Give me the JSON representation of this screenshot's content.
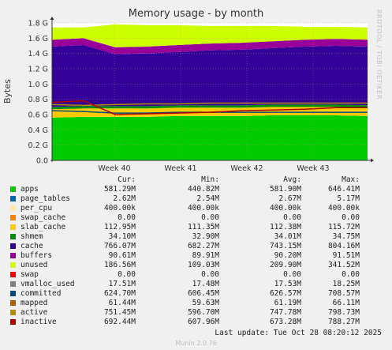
{
  "title": "Memory usage - by month",
  "watermark": "RRDTOOL / TOBI OETIKER",
  "footer": "Munin 2.0.76",
  "last_update": "Last update: Tue Oct 28 08:20:12 2025",
  "legend_headers": [
    "Cur:",
    "Min:",
    "Avg:",
    "Max:"
  ],
  "legend": [
    {
      "name": "apps",
      "color": "#00cc00",
      "cur": "581.29M",
      "min": "440.82M",
      "avg": "581.90M",
      "max": "646.41M"
    },
    {
      "name": "page_tables",
      "color": "#0066b3",
      "cur": "2.62M",
      "min": "2.54M",
      "avg": "2.67M",
      "max": "5.17M"
    },
    {
      "name": "per_cpu",
      "color": "#ffe8a0",
      "cur": "400.00k",
      "min": "400.00k",
      "avg": "400.00k",
      "max": "400.00k"
    },
    {
      "name": "swap_cache",
      "color": "#ff8000",
      "cur": "0.00",
      "min": "0.00",
      "avg": "0.00",
      "max": "0.00"
    },
    {
      "name": "slab_cache",
      "color": "#ffcc00",
      "cur": "112.95M",
      "min": "111.35M",
      "avg": "112.38M",
      "max": "115.72M"
    },
    {
      "name": "shmem",
      "color": "#008f00",
      "cur": "34.10M",
      "min": "32.90M",
      "avg": "34.01M",
      "max": "34.75M"
    },
    {
      "name": "cache",
      "color": "#330099",
      "cur": "766.07M",
      "min": "682.27M",
      "avg": "743.15M",
      "max": "804.16M"
    },
    {
      "name": "buffers",
      "color": "#990099",
      "cur": "90.61M",
      "min": "89.91M",
      "avg": "90.20M",
      "max": "91.51M"
    },
    {
      "name": "unused",
      "color": "#ccff00",
      "cur": "186.56M",
      "min": "109.03M",
      "avg": "209.90M",
      "max": "341.52M"
    },
    {
      "name": "swap",
      "color": "#ff0000",
      "cur": "0.00",
      "min": "0.00",
      "avg": "0.00",
      "max": "0.00"
    },
    {
      "name": "vmalloc_used",
      "color": "#808080",
      "cur": "17.51M",
      "min": "17.48M",
      "avg": "17.53M",
      "max": "18.25M"
    },
    {
      "name": "committed",
      "color": "#004d80",
      "cur": "624.70M",
      "min": "606.45M",
      "avg": "626.57M",
      "max": "708.57M"
    },
    {
      "name": "mapped",
      "color": "#b35900",
      "cur": "61.44M",
      "min": "59.63M",
      "avg": "61.19M",
      "max": "66.11M"
    },
    {
      "name": "active",
      "color": "#b38f00",
      "cur": "751.45M",
      "min": "596.70M",
      "avg": "747.78M",
      "max": "798.73M"
    },
    {
      "name": "inactive",
      "color": "#b30000",
      "cur": "692.44M",
      "min": "607.96M",
      "avg": "673.28M",
      "max": "788.27M"
    }
  ],
  "chart_data": {
    "type": "area",
    "title": "Memory usage - by month",
    "ylabel": "Bytes",
    "x_ticks": [
      "Week 40",
      "Week 41",
      "Week 42",
      "Week 43"
    ],
    "y_ticks": [
      "0.0",
      "0.2 G",
      "0.4 G",
      "0.6 G",
      "0.8 G",
      "1.0 G",
      "1.2 G",
      "1.4 G",
      "1.6 G",
      "1.8 G"
    ],
    "ylim_gb": [
      0,
      1.8
    ],
    "grid": true,
    "total_gb": 1.74,
    "stacked_series": [
      {
        "name": "apps",
        "color": "#00cc00",
        "values": [
          0.56,
          0.57,
          0.57,
          0.57,
          0.58,
          0.58,
          0.58,
          0.59,
          0.59,
          0.59,
          0.58
        ]
      },
      {
        "name": "slab_cache",
        "color": "#ffcc00",
        "values": [
          0.11,
          0.11,
          0.11,
          0.11,
          0.11,
          0.11,
          0.11,
          0.11,
          0.11,
          0.11,
          0.11
        ]
      },
      {
        "name": "shmem",
        "color": "#008f00",
        "values": [
          0.03,
          0.03,
          0.03,
          0.03,
          0.03,
          0.03,
          0.03,
          0.03,
          0.03,
          0.03,
          0.03
        ]
      },
      {
        "name": "cache",
        "color": "#330099",
        "values": [
          0.79,
          0.8,
          0.68,
          0.69,
          0.7,
          0.72,
          0.73,
          0.74,
          0.76,
          0.77,
          0.77
        ]
      },
      {
        "name": "buffers",
        "color": "#990099",
        "values": [
          0.09,
          0.09,
          0.09,
          0.09,
          0.09,
          0.09,
          0.09,
          0.09,
          0.09,
          0.09,
          0.09
        ]
      },
      {
        "name": "unused",
        "color": "#ccff00",
        "values": [
          0.16,
          0.14,
          0.3,
          0.28,
          0.26,
          0.23,
          0.22,
          0.2,
          0.17,
          0.16,
          0.16
        ]
      }
    ],
    "line_series": [
      {
        "name": "committed",
        "color": "#004d80",
        "values": [
          0.65,
          0.64,
          0.62,
          0.62,
          0.63,
          0.63,
          0.63,
          0.63,
          0.63,
          0.63,
          0.63
        ]
      },
      {
        "name": "active",
        "color": "#b38f00",
        "values": [
          0.73,
          0.72,
          0.73,
          0.74,
          0.74,
          0.75,
          0.75,
          0.75,
          0.75,
          0.75,
          0.75
        ]
      },
      {
        "name": "inactive",
        "color": "#b30000",
        "values": [
          0.76,
          0.78,
          0.6,
          0.61,
          0.62,
          0.63,
          0.65,
          0.66,
          0.67,
          0.69,
          0.69
        ]
      }
    ]
  }
}
